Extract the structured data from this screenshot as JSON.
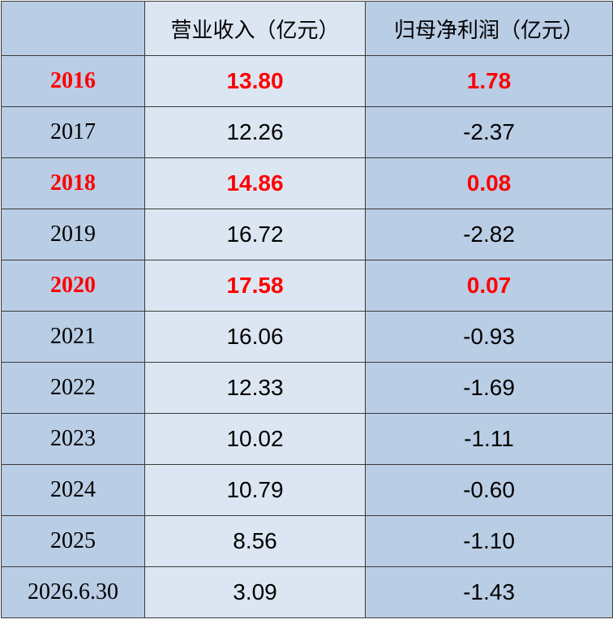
{
  "table": {
    "highlight_color": "#ff0000",
    "header": [
      "营业收入（亿元）",
      "归母净利润（亿元）"
    ],
    "rows": [
      {
        "cells": [
          "2016",
          "13.80",
          "1.78"
        ],
        "highlighted": true
      },
      {
        "cells": [
          "2017",
          "12.26",
          "-2.37"
        ],
        "highlighted": false
      },
      {
        "cells": [
          "2018",
          "14.86",
          "0.08"
        ],
        "highlighted": true
      },
      {
        "cells": [
          "2019",
          "16.72",
          "-2.82"
        ],
        "highlighted": false
      },
      {
        "cells": [
          "2020",
          "17.58",
          "0.07"
        ],
        "highlighted": true
      },
      {
        "cells": [
          "2021",
          "16.06",
          "-0.93"
        ],
        "highlighted": false
      },
      {
        "cells": [
          "2022",
          "12.33",
          "-1.69"
        ],
        "highlighted": false
      },
      {
        "cells": [
          "2023",
          "10.02",
          "-1.11"
        ],
        "highlighted": false
      },
      {
        "cells": [
          "2024",
          "10.79",
          "-0.60"
        ],
        "highlighted": false
      },
      {
        "cells": [
          "2025",
          "8.56",
          "-1.10"
        ],
        "highlighted": false
      },
      {
        "cells": [
          "2026.6.30",
          "3.09",
          "-1.43"
        ],
        "highlighted": false
      }
    ]
  }
}
